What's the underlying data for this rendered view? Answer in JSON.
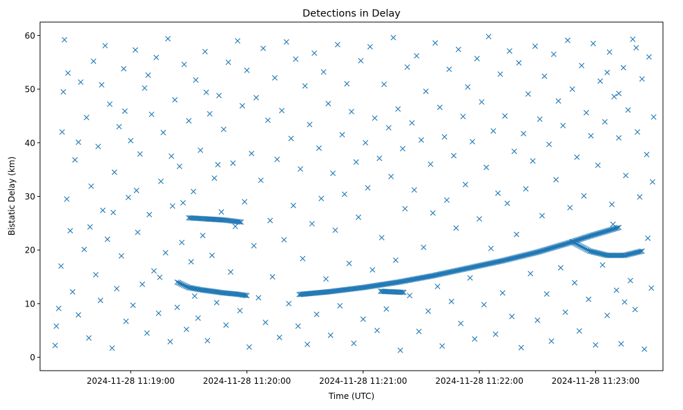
{
  "chart_data": {
    "type": "scatter",
    "title": "Detections in Delay",
    "xlabel": "Time (UTC)",
    "ylabel": "Bistatic Delay (km)",
    "x_unit": "minute-of-hour",
    "xlim": [
      18.22,
      23.58
    ],
    "ylim": [
      -2.5,
      62.5
    ],
    "x_ticks": [
      {
        "value": 19,
        "label": "2024-11-28 11:19:00"
      },
      {
        "value": 20,
        "label": "2024-11-28 11:20:00"
      },
      {
        "value": 21,
        "label": "2024-11-28 11:21:00"
      },
      {
        "value": 22,
        "label": "2024-11-28 11:22:00"
      },
      {
        "value": 23,
        "label": "2024-11-28 11:23:00"
      }
    ],
    "y_ticks": [
      0,
      10,
      20,
      30,
      40,
      50,
      60
    ],
    "marker": "x",
    "color": "#1f77b4",
    "grid": false,
    "tracks": [
      {
        "x": [
          19.4,
          19.5,
          19.6,
          19.7,
          19.8,
          19.9,
          20.0
        ],
        "y": [
          14.0,
          13.0,
          12.6,
          12.3,
          12.0,
          11.8,
          11.5
        ]
      },
      {
        "x": [
          19.5,
          19.65,
          19.8,
          19.95
        ],
        "y": [
          26.0,
          25.8,
          25.6,
          25.2
        ]
      },
      {
        "x": [
          20.45,
          20.7,
          21.0,
          21.3,
          21.6,
          21.9,
          22.2,
          22.5,
          22.75,
          22.95,
          23.2
        ],
        "y": [
          11.7,
          12.2,
          13.0,
          14.0,
          15.2,
          16.6,
          18.0,
          19.6,
          21.2,
          22.6,
          24.2
        ]
      },
      {
        "x": [
          22.8,
          22.95,
          23.1,
          23.25,
          23.4
        ],
        "y": [
          21.5,
          19.8,
          19.0,
          19.0,
          19.8
        ]
      },
      {
        "x": [
          21.15,
          21.25,
          21.35
        ],
        "y": [
          12.3,
          12.2,
          12.1
        ]
      }
    ],
    "clutter": [
      [
        18.35,
        2.2
      ],
      [
        18.36,
        5.8
      ],
      [
        18.38,
        9.1
      ],
      [
        18.4,
        17.0
      ],
      [
        18.41,
        42.0
      ],
      [
        18.42,
        49.5
      ],
      [
        18.43,
        59.2
      ],
      [
        18.45,
        29.5
      ],
      [
        18.46,
        53.0
      ],
      [
        18.48,
        23.6
      ],
      [
        18.5,
        12.2
      ],
      [
        18.52,
        36.8
      ],
      [
        18.55,
        7.9
      ],
      [
        18.57,
        51.3
      ],
      [
        18.6,
        20.1
      ],
      [
        18.62,
        44.7
      ],
      [
        18.64,
        3.6
      ],
      [
        18.66,
        31.9
      ],
      [
        18.68,
        55.2
      ],
      [
        18.7,
        15.4
      ],
      [
        18.72,
        39.3
      ],
      [
        18.74,
        10.6
      ],
      [
        18.76,
        27.4
      ],
      [
        18.78,
        58.1
      ],
      [
        18.8,
        22.0
      ],
      [
        18.82,
        47.2
      ],
      [
        18.84,
        1.7
      ],
      [
        18.86,
        34.5
      ],
      [
        18.88,
        12.8
      ],
      [
        18.9,
        43.0
      ],
      [
        18.92,
        18.9
      ],
      [
        18.94,
        53.8
      ],
      [
        18.96,
        6.7
      ],
      [
        18.98,
        29.8
      ],
      [
        19.0,
        40.4
      ],
      [
        19.02,
        9.7
      ],
      [
        19.04,
        57.3
      ],
      [
        19.06,
        23.3
      ],
      [
        19.08,
        37.9
      ],
      [
        19.1,
        13.6
      ],
      [
        19.12,
        50.2
      ],
      [
        19.14,
        4.5
      ],
      [
        19.16,
        26.6
      ],
      [
        19.18,
        45.3
      ],
      [
        19.2,
        16.1
      ],
      [
        19.22,
        55.9
      ],
      [
        19.24,
        8.2
      ],
      [
        19.26,
        32.8
      ],
      [
        19.28,
        41.9
      ],
      [
        19.3,
        19.5
      ],
      [
        19.32,
        59.4
      ],
      [
        19.34,
        2.9
      ],
      [
        19.36,
        28.2
      ],
      [
        19.38,
        48.0
      ],
      [
        19.4,
        9.3
      ],
      [
        19.42,
        35.6
      ],
      [
        19.44,
        21.4
      ],
      [
        19.46,
        54.6
      ],
      [
        19.48,
        5.2
      ],
      [
        19.5,
        44.1
      ],
      [
        19.52,
        17.8
      ],
      [
        19.54,
        30.9
      ],
      [
        19.56,
        51.7
      ],
      [
        19.58,
        7.3
      ],
      [
        19.6,
        38.6
      ],
      [
        19.62,
        22.7
      ],
      [
        19.64,
        57.0
      ],
      [
        19.66,
        3.1
      ],
      [
        19.68,
        45.4
      ],
      [
        19.7,
        19.0
      ],
      [
        19.72,
        33.4
      ],
      [
        19.74,
        10.2
      ],
      [
        19.76,
        48.8
      ],
      [
        19.78,
        27.1
      ],
      [
        19.8,
        42.5
      ],
      [
        19.82,
        6.0
      ],
      [
        19.84,
        55.0
      ],
      [
        19.86,
        15.9
      ],
      [
        19.88,
        36.2
      ],
      [
        19.9,
        24.4
      ],
      [
        19.92,
        59.0
      ],
      [
        19.94,
        8.7
      ],
      [
        19.96,
        46.9
      ],
      [
        19.98,
        29.0
      ],
      [
        20.0,
        53.5
      ],
      [
        20.02,
        1.9
      ],
      [
        20.04,
        38.0
      ],
      [
        20.06,
        20.8
      ],
      [
        20.08,
        48.4
      ],
      [
        20.1,
        11.1
      ],
      [
        20.12,
        33.0
      ],
      [
        20.14,
        57.6
      ],
      [
        20.16,
        6.5
      ],
      [
        20.18,
        44.2
      ],
      [
        20.2,
        25.5
      ],
      [
        20.22,
        15.0
      ],
      [
        20.24,
        52.1
      ],
      [
        20.26,
        36.9
      ],
      [
        20.28,
        3.7
      ],
      [
        20.3,
        46.0
      ],
      [
        20.32,
        21.9
      ],
      [
        20.34,
        58.8
      ],
      [
        20.36,
        10.0
      ],
      [
        20.38,
        40.8
      ],
      [
        20.4,
        28.3
      ],
      [
        20.42,
        55.6
      ],
      [
        20.44,
        5.8
      ],
      [
        20.46,
        35.1
      ],
      [
        20.48,
        18.4
      ],
      [
        20.5,
        50.6
      ],
      [
        20.52,
        2.4
      ],
      [
        20.54,
        43.4
      ],
      [
        20.56,
        24.9
      ],
      [
        20.58,
        56.7
      ],
      [
        20.6,
        8.0
      ],
      [
        20.62,
        39.0
      ],
      [
        20.64,
        29.6
      ],
      [
        20.66,
        53.2
      ],
      [
        20.68,
        14.6
      ],
      [
        20.7,
        47.3
      ],
      [
        20.72,
        4.1
      ],
      [
        20.74,
        34.3
      ],
      [
        20.76,
        23.7
      ],
      [
        20.78,
        58.3
      ],
      [
        20.8,
        9.6
      ],
      [
        20.82,
        41.5
      ],
      [
        20.84,
        30.4
      ],
      [
        20.86,
        51.0
      ],
      [
        20.88,
        17.5
      ],
      [
        20.9,
        45.8
      ],
      [
        20.92,
        2.6
      ],
      [
        20.94,
        36.4
      ],
      [
        20.96,
        26.1
      ],
      [
        20.98,
        55.3
      ],
      [
        21.0,
        7.1
      ],
      [
        21.02,
        40.0
      ],
      [
        21.04,
        31.6
      ],
      [
        21.06,
        57.9
      ],
      [
        21.08,
        16.3
      ],
      [
        21.1,
        44.6
      ],
      [
        21.12,
        5.0
      ],
      [
        21.14,
        37.1
      ],
      [
        21.16,
        22.3
      ],
      [
        21.18,
        50.9
      ],
      [
        21.2,
        9.0
      ],
      [
        21.22,
        42.8
      ],
      [
        21.24,
        33.7
      ],
      [
        21.26,
        59.6
      ],
      [
        21.28,
        18.1
      ],
      [
        21.3,
        46.3
      ],
      [
        21.32,
        1.3
      ],
      [
        21.34,
        38.9
      ],
      [
        21.36,
        27.7
      ],
      [
        21.38,
        54.1
      ],
      [
        21.4,
        11.5
      ],
      [
        21.42,
        43.7
      ],
      [
        21.44,
        31.2
      ],
      [
        21.46,
        56.2
      ],
      [
        21.48,
        4.8
      ],
      [
        21.5,
        40.5
      ],
      [
        21.52,
        20.5
      ],
      [
        21.54,
        49.6
      ],
      [
        21.56,
        8.6
      ],
      [
        21.58,
        36.0
      ],
      [
        21.6,
        26.9
      ],
      [
        21.62,
        58.6
      ],
      [
        21.64,
        13.2
      ],
      [
        21.66,
        46.6
      ],
      [
        21.68,
        2.1
      ],
      [
        21.7,
        41.1
      ],
      [
        21.72,
        29.3
      ],
      [
        21.74,
        53.7
      ],
      [
        21.76,
        10.4
      ],
      [
        21.78,
        37.6
      ],
      [
        21.8,
        24.1
      ],
      [
        21.82,
        57.4
      ],
      [
        21.84,
        6.3
      ],
      [
        21.86,
        44.9
      ],
      [
        21.88,
        32.2
      ],
      [
        21.9,
        50.4
      ],
      [
        21.92,
        14.8
      ],
      [
        21.94,
        40.2
      ],
      [
        21.96,
        3.4
      ],
      [
        21.98,
        55.7
      ],
      [
        22.0,
        25.8
      ],
      [
        22.02,
        47.6
      ],
      [
        22.04,
        9.8
      ],
      [
        22.06,
        35.4
      ],
      [
        22.08,
        59.8
      ],
      [
        22.1,
        20.3
      ],
      [
        22.12,
        42.2
      ],
      [
        22.14,
        4.3
      ],
      [
        22.16,
        30.6
      ],
      [
        22.18,
        52.8
      ],
      [
        22.2,
        12.0
      ],
      [
        22.22,
        45.0
      ],
      [
        22.24,
        28.7
      ],
      [
        22.26,
        57.1
      ],
      [
        22.28,
        7.6
      ],
      [
        22.3,
        38.4
      ],
      [
        22.32,
        22.9
      ],
      [
        22.34,
        54.9
      ],
      [
        22.36,
        1.8
      ],
      [
        22.38,
        41.7
      ],
      [
        22.4,
        31.4
      ],
      [
        22.42,
        49.1
      ],
      [
        22.44,
        15.6
      ],
      [
        22.46,
        36.6
      ],
      [
        22.48,
        58.0
      ],
      [
        22.5,
        6.9
      ],
      [
        22.52,
        44.4
      ],
      [
        22.54,
        26.4
      ],
      [
        22.56,
        52.4
      ],
      [
        22.58,
        11.8
      ],
      [
        22.6,
        39.7
      ],
      [
        22.62,
        3.0
      ],
      [
        22.64,
        56.5
      ],
      [
        22.66,
        33.1
      ],
      [
        22.68,
        47.8
      ],
      [
        22.7,
        16.7
      ],
      [
        22.72,
        43.2
      ],
      [
        22.74,
        8.4
      ],
      [
        22.76,
        59.1
      ],
      [
        22.78,
        27.9
      ],
      [
        22.8,
        50.0
      ],
      [
        22.82,
        13.9
      ],
      [
        22.84,
        37.3
      ],
      [
        22.86,
        4.9
      ],
      [
        22.88,
        54.4
      ],
      [
        22.9,
        30.1
      ],
      [
        22.92,
        45.6
      ],
      [
        22.94,
        10.8
      ],
      [
        22.96,
        41.3
      ],
      [
        22.98,
        58.5
      ],
      [
        23.0,
        2.3
      ],
      [
        23.02,
        35.8
      ],
      [
        23.04,
        51.5
      ],
      [
        23.06,
        17.2
      ],
      [
        23.08,
        43.9
      ],
      [
        23.1,
        7.8
      ],
      [
        23.12,
        56.9
      ],
      [
        23.14,
        28.5
      ],
      [
        23.16,
        48.6
      ],
      [
        23.18,
        12.5
      ],
      [
        23.2,
        40.9
      ],
      [
        23.22,
        2.5
      ],
      [
        23.24,
        54.0
      ],
      [
        23.26,
        33.9
      ],
      [
        23.28,
        46.1
      ],
      [
        23.3,
        14.3
      ],
      [
        23.32,
        59.3
      ],
      [
        23.34,
        8.9
      ],
      [
        23.36,
        42.0
      ],
      [
        23.38,
        29.9
      ],
      [
        23.4,
        51.9
      ],
      [
        23.42,
        1.5
      ],
      [
        23.44,
        37.8
      ],
      [
        23.46,
        56.0
      ],
      [
        23.48,
        12.9
      ],
      [
        23.5,
        44.8
      ],
      [
        23.1,
        53.1
      ],
      [
        23.15,
        24.8
      ],
      [
        23.2,
        49.2
      ],
      [
        23.25,
        10.3
      ],
      [
        23.35,
        57.7
      ],
      [
        23.45,
        22.2
      ],
      [
        23.49,
        32.7
      ],
      [
        18.55,
        40.1
      ],
      [
        18.65,
        24.3
      ],
      [
        18.75,
        50.8
      ],
      [
        18.85,
        27.0
      ],
      [
        18.95,
        45.9
      ],
      [
        19.05,
        31.1
      ],
      [
        19.15,
        52.6
      ],
      [
        19.25,
        14.9
      ],
      [
        19.35,
        37.5
      ],
      [
        19.45,
        28.8
      ],
      [
        19.55,
        11.4
      ],
      [
        19.65,
        49.4
      ],
      [
        19.75,
        35.9
      ]
    ]
  }
}
